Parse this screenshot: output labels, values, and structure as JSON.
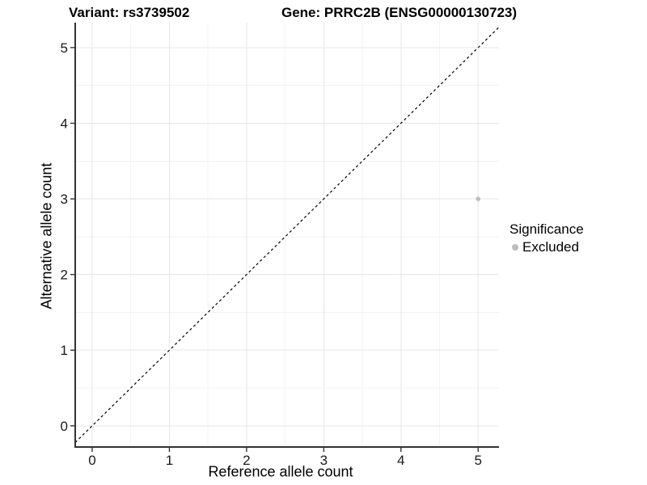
{
  "chart_data": {
    "type": "scatter",
    "titles": [
      "Variant: rs3739502",
      "Gene: PRRC2B (ENSG00000130723)"
    ],
    "xlabel": "Reference allele count",
    "ylabel": "Alternative allele count",
    "xlim": [
      -0.22,
      5.27
    ],
    "ylim": [
      -0.28,
      5.33
    ],
    "xticks": [
      0,
      1,
      2,
      3,
      4,
      5
    ],
    "yticks": [
      0,
      1,
      2,
      3,
      4,
      5
    ],
    "grid": {
      "show": true,
      "major": "#e6e6e6",
      "minor": "#f3f3f3",
      "minor_at_midpoints": true
    },
    "axis_color": "#333333",
    "tick_label_color": "#1a1a1a",
    "points": [
      {
        "x": 5,
        "y": 3,
        "group": "Excluded",
        "color": "#bebebe",
        "radius": 2.8
      }
    ],
    "reference_line": {
      "slope": 1,
      "intercept": 0,
      "style": "dashed",
      "color": "#000000"
    },
    "legend": {
      "title": "Significance",
      "position": "right",
      "items": [
        {
          "label": "Excluded",
          "color": "#bdbdbd"
        }
      ]
    }
  }
}
